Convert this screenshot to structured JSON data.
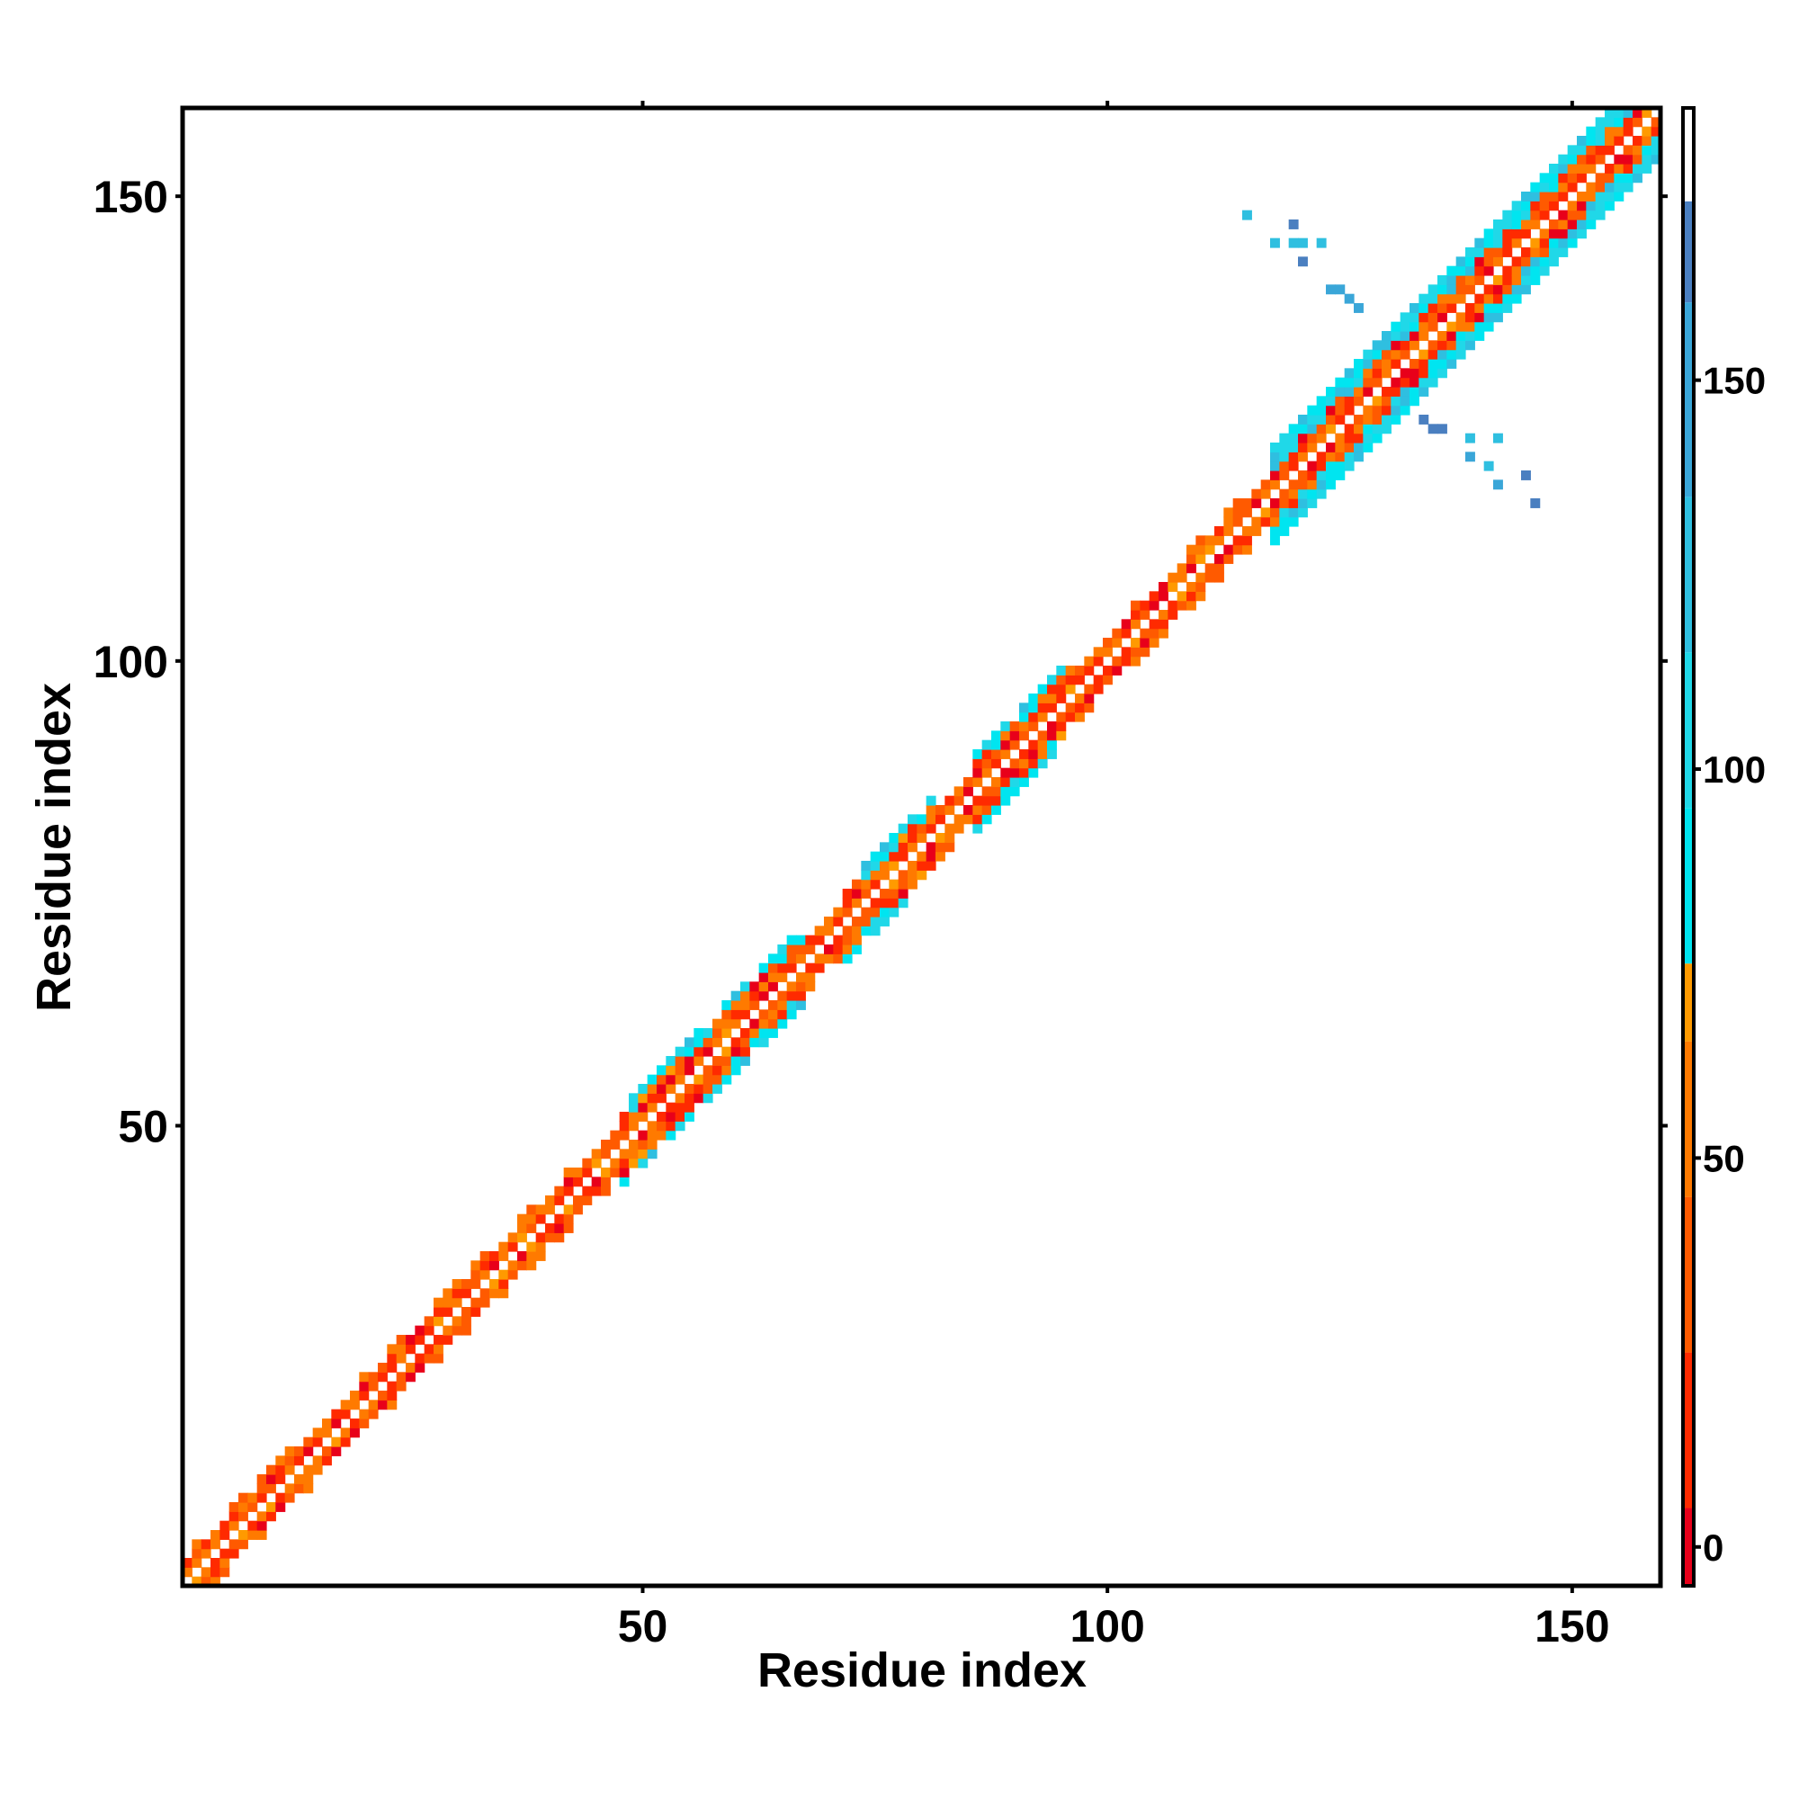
{
  "chart_data": {
    "type": "heatmap",
    "xlabel": "Residue index",
    "ylabel": "Residue index",
    "xlim": [
      1,
      159
    ],
    "ylim": [
      1,
      159
    ],
    "x_ticks": [
      50,
      100,
      150
    ],
    "y_ticks": [
      50,
      100,
      150
    ],
    "colorbar": {
      "range": [
        -5,
        185
      ],
      "ticks": [
        0,
        50,
        100,
        150
      ],
      "bands": [
        {
          "from": -5,
          "to": 5,
          "color": "#e8001a"
        },
        {
          "from": 5,
          "to": 25,
          "color": "#ff2a00"
        },
        {
          "from": 25,
          "to": 45,
          "color": "#ff5a00"
        },
        {
          "from": 45,
          "to": 65,
          "color": "#ff7a00"
        },
        {
          "from": 65,
          "to": 75,
          "color": "#ff9a00"
        },
        {
          "from": 75,
          "to": 95,
          "color": "#00e5f0"
        },
        {
          "from": 95,
          "to": 115,
          "color": "#20d8e8"
        },
        {
          "from": 115,
          "to": 135,
          "color": "#2fbfe0"
        },
        {
          "from": 135,
          "to": 160,
          "color": "#3aa6d8"
        },
        {
          "from": 160,
          "to": 173,
          "color": "#4a7fc0"
        },
        {
          "from": 173,
          "to": 185,
          "color": "#ffffff"
        }
      ]
    },
    "grid": false,
    "legend": "colorbar-right",
    "segments": [
      {
        "start": 1,
        "end": 48,
        "kind": "nearonly"
      },
      {
        "start": 48,
        "end": 68,
        "kind": "mixed"
      },
      {
        "start": 68,
        "end": 72,
        "kind": "nearonly"
      },
      {
        "start": 72,
        "end": 82,
        "kind": "mixed"
      },
      {
        "start": 82,
        "end": 86,
        "kind": "nearonly"
      },
      {
        "start": 86,
        "end": 96,
        "kind": "mixed"
      },
      {
        "start": 96,
        "end": 118,
        "kind": "nearonly"
      },
      {
        "start": 118,
        "end": 159,
        "kind": "wide"
      }
    ],
    "off_diagonal_points": [
      {
        "x": 115,
        "y": 148,
        "v": 130
      },
      {
        "x": 120,
        "y": 147,
        "v": 160
      },
      {
        "x": 118,
        "y": 145,
        "v": 120
      },
      {
        "x": 120,
        "y": 145,
        "v": 120
      },
      {
        "x": 121,
        "y": 145,
        "v": 130
      },
      {
        "x": 123,
        "y": 145,
        "v": 120
      },
      {
        "x": 121,
        "y": 143,
        "v": 160
      },
      {
        "x": 124,
        "y": 140,
        "v": 150
      },
      {
        "x": 125,
        "y": 140,
        "v": 150
      },
      {
        "x": 126,
        "y": 139,
        "v": 150
      },
      {
        "x": 127,
        "y": 138,
        "v": 150
      },
      {
        "x": 134,
        "y": 126,
        "v": 160
      },
      {
        "x": 135,
        "y": 125,
        "v": 160
      },
      {
        "x": 136,
        "y": 125,
        "v": 160
      },
      {
        "x": 139,
        "y": 124,
        "v": 130
      },
      {
        "x": 142,
        "y": 124,
        "v": 130
      },
      {
        "x": 139,
        "y": 122,
        "v": 150
      },
      {
        "x": 141,
        "y": 121,
        "v": 130
      },
      {
        "x": 145,
        "y": 120,
        "v": 160
      },
      {
        "x": 142,
        "y": 119,
        "v": 140
      },
      {
        "x": 146,
        "y": 117,
        "v": 160
      }
    ]
  }
}
